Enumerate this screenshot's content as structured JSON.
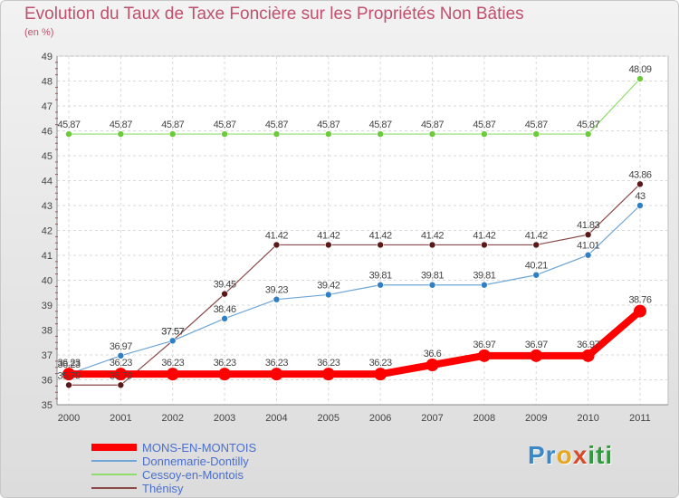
{
  "chart_data": {
    "type": "line",
    "title": "Evolution du Taux de Taxe Foncière sur les Propriétés Non Bâties",
    "ylabel": "(en %)",
    "categories": [
      "2000",
      "2001",
      "2002",
      "2003",
      "2004",
      "2005",
      "2006",
      "2007",
      "2008",
      "2009",
      "2010",
      "2011"
    ],
    "ylim": [
      35,
      49
    ],
    "yticks": [
      "35",
      "36",
      "37",
      "38",
      "39",
      "40",
      "41",
      "42",
      "43",
      "44",
      "45",
      "46",
      "47",
      "48",
      "49"
    ],
    "grid": true,
    "legend_position": "bottom-left",
    "series": [
      {
        "name": "MONS-EN-MONTOIS",
        "color": "#ff0000",
        "width": 8,
        "marker": 7,
        "values": [
          36.23,
          36.23,
          36.23,
          36.23,
          36.23,
          36.23,
          36.23,
          36.6,
          36.97,
          36.97,
          36.97,
          38.76
        ],
        "labels": [
          "36.23",
          "36.23",
          "36.23",
          "36.23",
          "36.23",
          "36.23",
          "36.23",
          "36.6",
          "36.97",
          "36.97",
          "36.97",
          "38.76"
        ]
      },
      {
        "name": "Donnemarie-Dontilly",
        "color": "#6fa6d6",
        "dot": "#2f7fc4",
        "width": 1.2,
        "marker": 3.5,
        "values": [
          36.23,
          36.97,
          37.57,
          38.46,
          39.23,
          39.42,
          39.81,
          39.81,
          39.81,
          40.21,
          41.01,
          43
        ],
        "labels": [
          "36.23",
          "36.97",
          "37.57",
          "38.46",
          "39.23",
          "39.42",
          "39.81",
          "39.81",
          "39.81",
          "40.21",
          "41.01",
          "43"
        ]
      },
      {
        "name": "Cessoy-en-Montois",
        "color": "#8fdc6a",
        "dot": "#6bcb3a",
        "width": 1.2,
        "marker": 3.5,
        "values": [
          45.87,
          45.87,
          45.87,
          45.87,
          45.87,
          45.87,
          45.87,
          45.87,
          45.87,
          45.87,
          45.87,
          48.09
        ],
        "labels": [
          "45.87",
          "45.87",
          "45.87",
          "45.87",
          "45.87",
          "45.87",
          "45.87",
          "45.87",
          "45.87",
          "45.87",
          "45.87",
          "48.09"
        ]
      },
      {
        "name": "Thénisy",
        "color": "#8b4a4a",
        "dot": "#5a1818",
        "width": 1.2,
        "marker": 3.5,
        "values": [
          35.79,
          35.79,
          37.57,
          39.45,
          41.42,
          41.42,
          41.42,
          41.42,
          41.42,
          41.42,
          41.83,
          43.86
        ],
        "labels": [
          "35.79",
          "35.79",
          "37.57",
          "39.45",
          "41.42",
          "41.42",
          "41.42",
          "41.42",
          "41.42",
          "41.42",
          "41.83",
          "43.86"
        ]
      }
    ]
  },
  "logo": {
    "p1": "Pr",
    "p2": "o",
    "p3": "x",
    "p4": "iti"
  }
}
